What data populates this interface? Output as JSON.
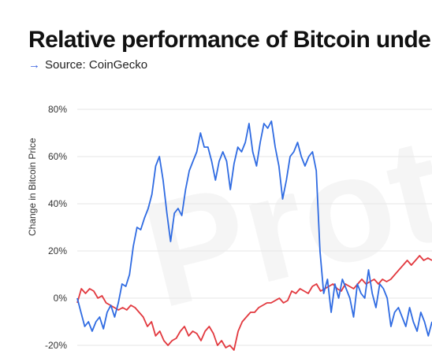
{
  "header": {
    "title": "Relative performance of Bitcoin unde",
    "source_arrow": "→",
    "source": "Source: CoinGecko"
  },
  "chart_data": {
    "type": "line",
    "title": "Relative performance of Bitcoin unde",
    "ylabel": "Change in Bitcoin Price",
    "xlabel": "",
    "ylim": [
      -22,
      82
    ],
    "yticks": [
      80,
      60,
      40,
      20,
      0,
      -20
    ],
    "ytick_labels": [
      "80%",
      "60%",
      "40%",
      "20%",
      "0%",
      "-20%"
    ],
    "grid": true,
    "watermark": "Proto",
    "colors": {
      "blue": "#2f6be2",
      "red": "#e2393f"
    },
    "series": [
      {
        "color": "#2f6be2",
        "values": [
          0,
          -6,
          -12,
          -10,
          -14,
          -10,
          -8,
          -13,
          -6,
          -3,
          -8,
          -2,
          6,
          5,
          10,
          22,
          30,
          29,
          34,
          38,
          44,
          56,
          60,
          50,
          36,
          24,
          36,
          38,
          35,
          46,
          54,
          58,
          62,
          70,
          64,
          64,
          58,
          50,
          58,
          62,
          58,
          46,
          57,
          64,
          62,
          66,
          74,
          62,
          56,
          66,
          74,
          72,
          75,
          64,
          56,
          42,
          50,
          60,
          62,
          66,
          60,
          56,
          60,
          62,
          54,
          20,
          2,
          8,
          -6,
          6,
          0,
          8,
          4,
          0,
          -8,
          6,
          2,
          0,
          12,
          2,
          -4,
          6,
          4,
          0,
          -12,
          -6,
          -4,
          -8,
          -12,
          -4,
          -10,
          -14,
          -6,
          -10,
          -16,
          -10
        ]
      },
      {
        "color": "#e2393f",
        "values": [
          -2,
          4,
          2,
          4,
          3,
          0,
          1,
          -2,
          -3,
          -4,
          -5,
          -4,
          -5,
          -3,
          -4,
          -6,
          -8,
          -12,
          -10,
          -16,
          -14,
          -18,
          -20,
          -18,
          -17,
          -14,
          -12,
          -16,
          -14,
          -15,
          -18,
          -14,
          -12,
          -15,
          -20,
          -18,
          -21,
          -20,
          -22,
          -14,
          -10,
          -8,
          -6,
          -6,
          -4,
          -3,
          -2,
          -2,
          -1,
          0,
          -2,
          -1,
          3,
          2,
          4,
          3,
          2,
          5,
          6,
          3,
          4,
          5,
          6,
          4,
          3,
          6,
          5,
          4,
          6,
          8,
          6,
          7,
          8,
          6,
          8,
          7,
          8,
          10,
          12,
          14,
          16,
          14,
          16,
          18,
          16,
          17,
          16
        ]
      }
    ]
  }
}
